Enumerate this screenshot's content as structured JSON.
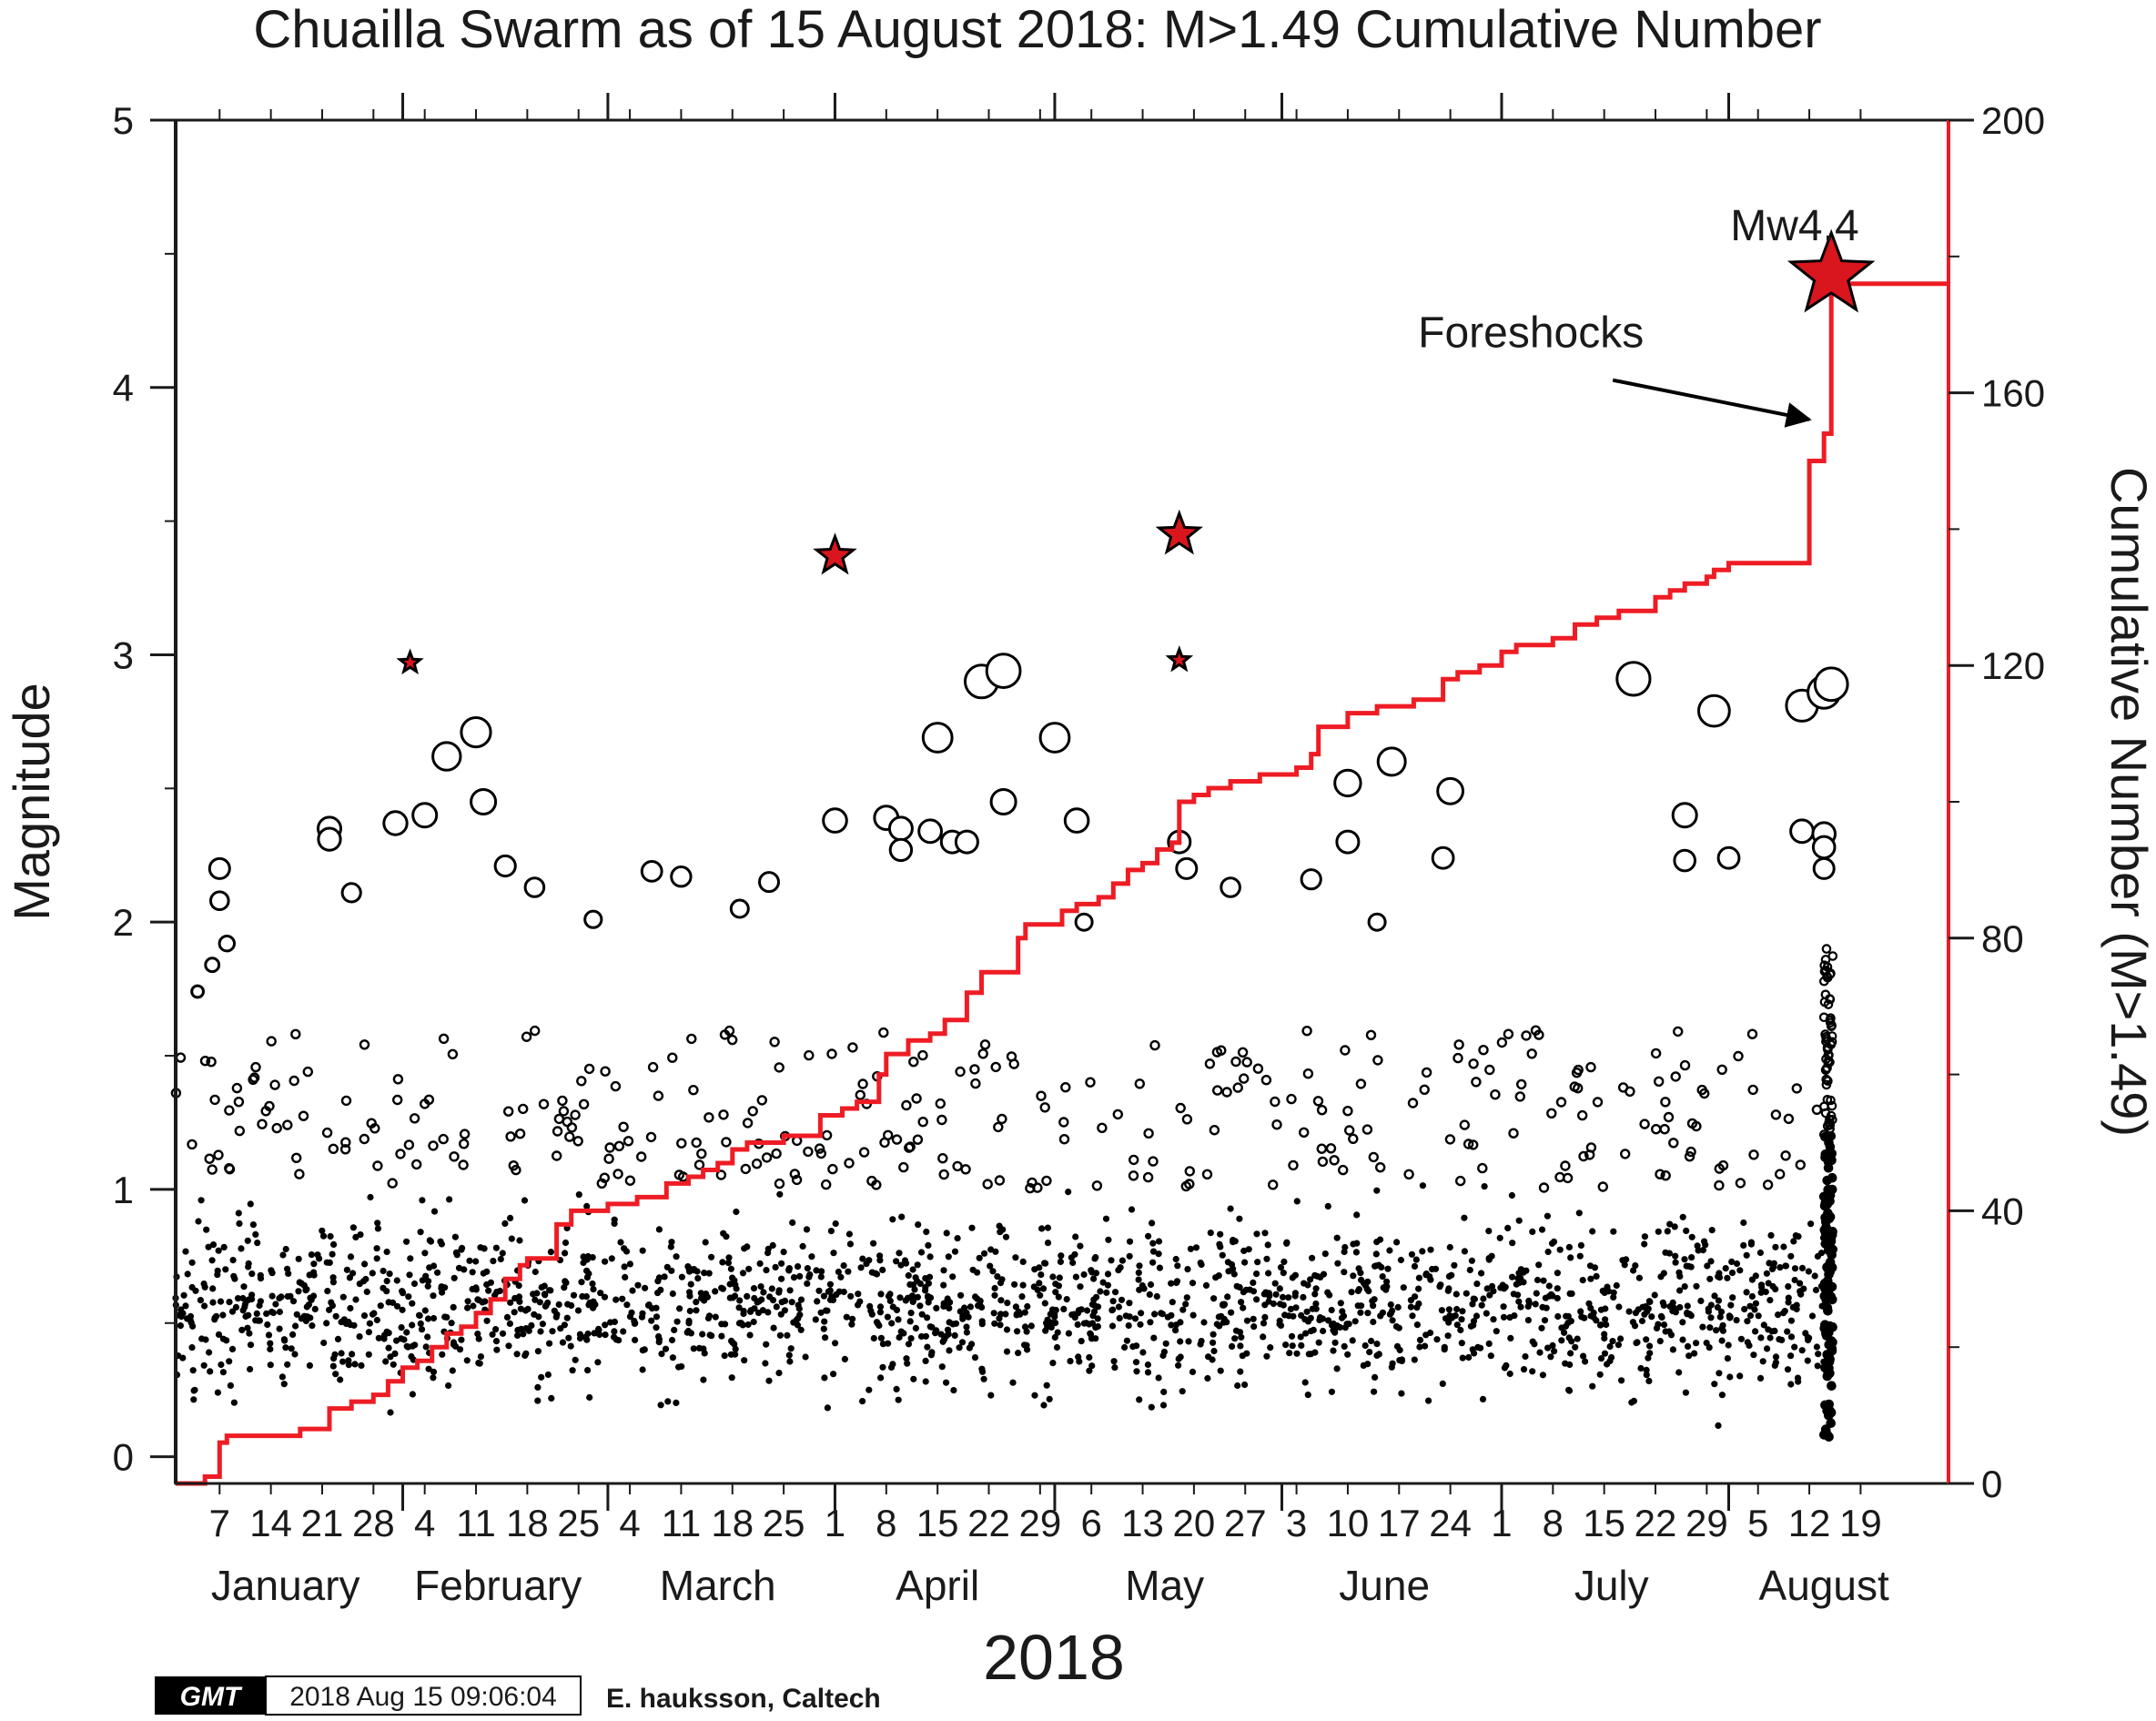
{
  "chart_data": {
    "type": "scatter",
    "title": "Chuailla Swarm as of 15 August 2018:  M>1.49 Cumulative Number",
    "xlabel": "2018",
    "ylabel": "Magnitude",
    "y2label": "Cumulative Number (M>1.49)",
    "xlim": [
      "2018-01-01",
      "2018-08-31"
    ],
    "ylim": [
      -0.1,
      5
    ],
    "y2lim": [
      0,
      200
    ],
    "grid": false,
    "yticks": [
      0,
      1,
      2,
      3,
      4,
      5
    ],
    "y2ticks": [
      0,
      40,
      80,
      120,
      160,
      200
    ],
    "day_ticks": [
      {
        "date": "2018-01-07",
        "label": "7"
      },
      {
        "date": "2018-01-14",
        "label": "14"
      },
      {
        "date": "2018-01-21",
        "label": "21"
      },
      {
        "date": "2018-01-28",
        "label": "28"
      },
      {
        "date": "2018-02-04",
        "label": "4"
      },
      {
        "date": "2018-02-11",
        "label": "11"
      },
      {
        "date": "2018-02-18",
        "label": "18"
      },
      {
        "date": "2018-02-25",
        "label": "25"
      },
      {
        "date": "2018-03-04",
        "label": "4"
      },
      {
        "date": "2018-03-11",
        "label": "11"
      },
      {
        "date": "2018-03-18",
        "label": "18"
      },
      {
        "date": "2018-03-25",
        "label": "25"
      },
      {
        "date": "2018-04-01",
        "label": "1"
      },
      {
        "date": "2018-04-08",
        "label": "8"
      },
      {
        "date": "2018-04-15",
        "label": "15"
      },
      {
        "date": "2018-04-22",
        "label": "22"
      },
      {
        "date": "2018-04-29",
        "label": "29"
      },
      {
        "date": "2018-05-06",
        "label": "6"
      },
      {
        "date": "2018-05-13",
        "label": "13"
      },
      {
        "date": "2018-05-20",
        "label": "20"
      },
      {
        "date": "2018-05-27",
        "label": "27"
      },
      {
        "date": "2018-06-03",
        "label": "3"
      },
      {
        "date": "2018-06-10",
        "label": "10"
      },
      {
        "date": "2018-06-17",
        "label": "17"
      },
      {
        "date": "2018-06-24",
        "label": "24"
      },
      {
        "date": "2018-07-01",
        "label": "1"
      },
      {
        "date": "2018-07-08",
        "label": "8"
      },
      {
        "date": "2018-07-15",
        "label": "15"
      },
      {
        "date": "2018-07-22",
        "label": "22"
      },
      {
        "date": "2018-07-29",
        "label": "29"
      },
      {
        "date": "2018-08-05",
        "label": "5"
      },
      {
        "date": "2018-08-12",
        "label": "12"
      },
      {
        "date": "2018-08-19",
        "label": "19"
      }
    ],
    "month_ticks": [
      "2018-02-01",
      "2018-03-01",
      "2018-04-01",
      "2018-05-01",
      "2018-06-01",
      "2018-07-01",
      "2018-08-01"
    ],
    "months": [
      {
        "label": "January",
        "mid": "2018-01-16"
      },
      {
        "label": "February",
        "mid": "2018-02-14"
      },
      {
        "label": "March",
        "mid": "2018-03-16"
      },
      {
        "label": "April",
        "mid": "2018-04-15"
      },
      {
        "label": "May",
        "mid": "2018-05-16"
      },
      {
        "label": "June",
        "mid": "2018-06-15"
      },
      {
        "label": "July",
        "mid": "2018-07-16"
      },
      {
        "label": "August",
        "mid": "2018-08-14"
      }
    ],
    "stars": [
      {
        "date": "2018-02-02",
        "mag": 2.97
      },
      {
        "date": "2018-04-01",
        "mag": 3.37
      },
      {
        "date": "2018-05-18",
        "mag": 3.45
      },
      {
        "date": "2018-05-18",
        "mag": 2.98
      },
      {
        "date": "2018-08-15",
        "mag": 4.42
      }
    ],
    "large_events": [
      {
        "date": "2018-01-07",
        "mag": 2.2
      },
      {
        "date": "2018-01-07",
        "mag": 2.08
      },
      {
        "date": "2018-01-08",
        "mag": 1.92
      },
      {
        "date": "2018-01-06",
        "mag": 1.84
      },
      {
        "date": "2018-01-04",
        "mag": 1.74
      },
      {
        "date": "2018-01-22",
        "mag": 2.35
      },
      {
        "date": "2018-01-22",
        "mag": 2.31
      },
      {
        "date": "2018-01-25",
        "mag": 2.11
      },
      {
        "date": "2018-01-31",
        "mag": 2.37
      },
      {
        "date": "2018-02-04",
        "mag": 2.4
      },
      {
        "date": "2018-02-07",
        "mag": 2.62
      },
      {
        "date": "2018-02-11",
        "mag": 2.71
      },
      {
        "date": "2018-02-12",
        "mag": 2.45
      },
      {
        "date": "2018-02-15",
        "mag": 2.21
      },
      {
        "date": "2018-02-19",
        "mag": 2.13
      },
      {
        "date": "2018-02-27",
        "mag": 2.01
      },
      {
        "date": "2018-03-07",
        "mag": 2.19
      },
      {
        "date": "2018-03-11",
        "mag": 2.17
      },
      {
        "date": "2018-03-23",
        "mag": 2.15
      },
      {
        "date": "2018-03-19",
        "mag": 2.05
      },
      {
        "date": "2018-04-01",
        "mag": 2.38
      },
      {
        "date": "2018-04-08",
        "mag": 2.39
      },
      {
        "date": "2018-04-10",
        "mag": 2.35
      },
      {
        "date": "2018-04-10",
        "mag": 2.27
      },
      {
        "date": "2018-04-14",
        "mag": 2.34
      },
      {
        "date": "2018-04-17",
        "mag": 2.3
      },
      {
        "date": "2018-04-19",
        "mag": 2.3
      },
      {
        "date": "2018-04-15",
        "mag": 2.69
      },
      {
        "date": "2018-04-21",
        "mag": 2.9
      },
      {
        "date": "2018-04-24",
        "mag": 2.94
      },
      {
        "date": "2018-04-24",
        "mag": 2.45
      },
      {
        "date": "2018-05-01",
        "mag": 2.69
      },
      {
        "date": "2018-05-04",
        "mag": 2.38
      },
      {
        "date": "2018-05-18",
        "mag": 2.3
      },
      {
        "date": "2018-05-19",
        "mag": 2.2
      },
      {
        "date": "2018-05-25",
        "mag": 2.13
      },
      {
        "date": "2018-06-05",
        "mag": 2.16
      },
      {
        "date": "2018-06-10",
        "mag": 2.52
      },
      {
        "date": "2018-06-10",
        "mag": 2.3
      },
      {
        "date": "2018-06-16",
        "mag": 2.6
      },
      {
        "date": "2018-06-23",
        "mag": 2.24
      },
      {
        "date": "2018-06-24",
        "mag": 2.49
      },
      {
        "date": "2018-07-19",
        "mag": 2.91
      },
      {
        "date": "2018-07-26",
        "mag": 2.4
      },
      {
        "date": "2018-07-26",
        "mag": 2.23
      },
      {
        "date": "2018-07-30",
        "mag": 2.79
      },
      {
        "date": "2018-08-01",
        "mag": 2.24
      },
      {
        "date": "2018-08-11",
        "mag": 2.81
      },
      {
        "date": "2018-08-14",
        "mag": 2.86
      },
      {
        "date": "2018-08-15",
        "mag": 2.89
      },
      {
        "date": "2018-08-11",
        "mag": 2.34
      },
      {
        "date": "2018-08-14",
        "mag": 2.33
      },
      {
        "date": "2018-08-14",
        "mag": 2.28
      },
      {
        "date": "2018-08-14",
        "mag": 2.2
      },
      {
        "date": "2018-06-14",
        "mag": 2.0
      },
      {
        "date": "2018-05-05",
        "mag": 2.0
      }
    ],
    "cumulative_steps": [
      {
        "date": "2018-01-01",
        "count": 0
      },
      {
        "date": "2018-01-05",
        "count": 1
      },
      {
        "date": "2018-01-07",
        "count": 6
      },
      {
        "date": "2018-01-08",
        "count": 7
      },
      {
        "date": "2018-01-18",
        "count": 8
      },
      {
        "date": "2018-01-22",
        "count": 11
      },
      {
        "date": "2018-01-25",
        "count": 12
      },
      {
        "date": "2018-01-28",
        "count": 13
      },
      {
        "date": "2018-01-30",
        "count": 15
      },
      {
        "date": "2018-02-01",
        "count": 17
      },
      {
        "date": "2018-02-03",
        "count": 18
      },
      {
        "date": "2018-02-05",
        "count": 20
      },
      {
        "date": "2018-02-07",
        "count": 22
      },
      {
        "date": "2018-02-09",
        "count": 23
      },
      {
        "date": "2018-02-11",
        "count": 25
      },
      {
        "date": "2018-02-13",
        "count": 27
      },
      {
        "date": "2018-02-15",
        "count": 30
      },
      {
        "date": "2018-02-17",
        "count": 32
      },
      {
        "date": "2018-02-18",
        "count": 33
      },
      {
        "date": "2018-02-22",
        "count": 38
      },
      {
        "date": "2018-02-24",
        "count": 40
      },
      {
        "date": "2018-03-01",
        "count": 41
      },
      {
        "date": "2018-03-05",
        "count": 42
      },
      {
        "date": "2018-03-09",
        "count": 44
      },
      {
        "date": "2018-03-12",
        "count": 45
      },
      {
        "date": "2018-03-14",
        "count": 46
      },
      {
        "date": "2018-03-16",
        "count": 47
      },
      {
        "date": "2018-03-18",
        "count": 49
      },
      {
        "date": "2018-03-20",
        "count": 50
      },
      {
        "date": "2018-03-25",
        "count": 51
      },
      {
        "date": "2018-03-30",
        "count": 54
      },
      {
        "date": "2018-04-02",
        "count": 55
      },
      {
        "date": "2018-04-04",
        "count": 56
      },
      {
        "date": "2018-04-07",
        "count": 60
      },
      {
        "date": "2018-04-08",
        "count": 63
      },
      {
        "date": "2018-04-11",
        "count": 65
      },
      {
        "date": "2018-04-14",
        "count": 66
      },
      {
        "date": "2018-04-16",
        "count": 68
      },
      {
        "date": "2018-04-19",
        "count": 72
      },
      {
        "date": "2018-04-21",
        "count": 75
      },
      {
        "date": "2018-04-26",
        "count": 80
      },
      {
        "date": "2018-04-27",
        "count": 82
      },
      {
        "date": "2018-05-02",
        "count": 84
      },
      {
        "date": "2018-05-04",
        "count": 85
      },
      {
        "date": "2018-05-07",
        "count": 86
      },
      {
        "date": "2018-05-09",
        "count": 88
      },
      {
        "date": "2018-05-11",
        "count": 90
      },
      {
        "date": "2018-05-13",
        "count": 91
      },
      {
        "date": "2018-05-15",
        "count": 93
      },
      {
        "date": "2018-05-17",
        "count": 94
      },
      {
        "date": "2018-05-18",
        "count": 100
      },
      {
        "date": "2018-05-20",
        "count": 101
      },
      {
        "date": "2018-05-22",
        "count": 102
      },
      {
        "date": "2018-05-25",
        "count": 103
      },
      {
        "date": "2018-05-29",
        "count": 104
      },
      {
        "date": "2018-06-03",
        "count": 105
      },
      {
        "date": "2018-06-05",
        "count": 107
      },
      {
        "date": "2018-06-06",
        "count": 111
      },
      {
        "date": "2018-06-10",
        "count": 113
      },
      {
        "date": "2018-06-14",
        "count": 114
      },
      {
        "date": "2018-06-19",
        "count": 115
      },
      {
        "date": "2018-06-23",
        "count": 118
      },
      {
        "date": "2018-06-25",
        "count": 119
      },
      {
        "date": "2018-06-28",
        "count": 120
      },
      {
        "date": "2018-07-01",
        "count": 122
      },
      {
        "date": "2018-07-03",
        "count": 123
      },
      {
        "date": "2018-07-08",
        "count": 124
      },
      {
        "date": "2018-07-11",
        "count": 126
      },
      {
        "date": "2018-07-14",
        "count": 127
      },
      {
        "date": "2018-07-17",
        "count": 128
      },
      {
        "date": "2018-07-22",
        "count": 130
      },
      {
        "date": "2018-07-24",
        "count": 131
      },
      {
        "date": "2018-07-26",
        "count": 132
      },
      {
        "date": "2018-07-29",
        "count": 133
      },
      {
        "date": "2018-07-30",
        "count": 134
      },
      {
        "date": "2018-08-01",
        "count": 135
      },
      {
        "date": "2018-08-12",
        "count": 150
      },
      {
        "date": "2018-08-14",
        "count": 154
      },
      {
        "date": "2018-08-15",
        "count": 176
      },
      {
        "date": "2018-08-31",
        "count": 176
      }
    ],
    "annotations": [
      {
        "text": "Mw4.4",
        "date": "2018-08-10",
        "mag": 4.55
      },
      {
        "text": "Foreshocks",
        "date": "2018-07-05",
        "mag": 4.15,
        "arrow_to_date": "2018-08-12",
        "arrow_to_mag": 3.88
      }
    ]
  },
  "footer": {
    "logo": "GMT",
    "timestamp": "2018 Aug 15 09:06:04",
    "credit": "E. hauksson, Caltech"
  },
  "colors": {
    "cumulative_line": "#ee1c24",
    "star_fill": "#d9151d",
    "axis": "#1a1a1a"
  }
}
